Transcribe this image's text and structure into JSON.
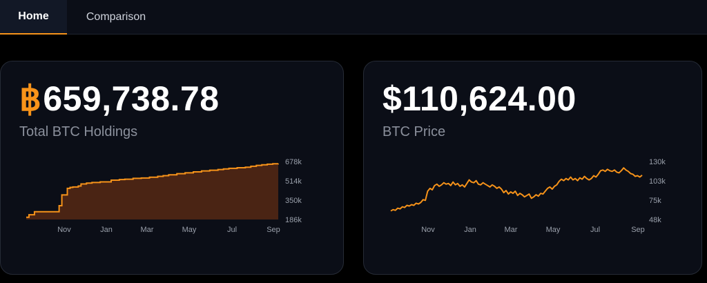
{
  "tabs": [
    {
      "label": "Home",
      "active": true
    },
    {
      "label": "Comparison",
      "active": false
    }
  ],
  "holdings_card": {
    "currency_icon": "bitcoin-icon",
    "currency_symbol": "฿",
    "value": "659,738.78",
    "label": "Total BTC Holdings"
  },
  "price_card": {
    "value": "$110,624.00",
    "label": "BTC Price"
  },
  "colors": {
    "accent": "#f7931a",
    "area_fill": "#4a2414",
    "card_bg": "#0b0e17",
    "muted_text": "#8b909c"
  },
  "chart_data": [
    {
      "type": "area",
      "step": true,
      "x_tick_labels": [
        "Nov",
        "Jan",
        "Mar",
        "May",
        "Jul",
        "Sep"
      ],
      "y_tick_labels": [
        "678k",
        "514k",
        "350k",
        "186k"
      ],
      "ylim": [
        186000,
        678000
      ],
      "x": [
        0,
        1,
        3,
        11,
        12,
        13,
        15,
        16,
        17,
        19,
        20,
        22,
        24,
        27,
        31,
        34,
        36,
        39,
        42,
        45,
        48,
        50,
        52,
        55,
        58,
        61,
        64,
        67,
        70,
        72,
        74,
        77,
        80,
        82,
        84,
        86,
        88,
        90,
        92
      ],
      "values": [
        205000,
        226000,
        252000,
        252000,
        303000,
        395000,
        450000,
        458000,
        462000,
        470000,
        488000,
        495000,
        500000,
        505000,
        520000,
        525000,
        528000,
        535000,
        538000,
        545000,
        552000,
        558000,
        565000,
        575000,
        582000,
        590000,
        598000,
        604000,
        610000,
        615000,
        620000,
        625000,
        630000,
        638000,
        645000,
        650000,
        655000,
        659000,
        659739
      ]
    },
    {
      "type": "line",
      "x_tick_labels": [
        "Nov",
        "Jan",
        "Mar",
        "May",
        "Jul",
        "Sep"
      ],
      "y_tick_labels": [
        "130k",
        "103k",
        "75k",
        "48k"
      ],
      "ylim": [
        48000,
        130000
      ],
      "values": [
        60000,
        62000,
        61000,
        64000,
        63000,
        66000,
        65000,
        68000,
        67000,
        69000,
        68000,
        71000,
        70000,
        72000,
        76000,
        75000,
        88000,
        92000,
        90000,
        96000,
        98000,
        95000,
        97000,
        100000,
        98000,
        99000,
        96000,
        101000,
        97000,
        99000,
        95000,
        97000,
        94000,
        99000,
        104000,
        101000,
        100000,
        103000,
        98000,
        97000,
        100000,
        98000,
        96000,
        94000,
        97000,
        95000,
        92000,
        94000,
        91000,
        86000,
        89000,
        84000,
        87000,
        85000,
        88000,
        82000,
        85000,
        83000,
        80000,
        82000,
        84000,
        78000,
        80000,
        83000,
        81000,
        85000,
        84000,
        88000,
        92000,
        94000,
        91000,
        95000,
        97000,
        102000,
        105000,
        103000,
        106000,
        104000,
        108000,
        104000,
        106000,
        103000,
        107000,
        105000,
        109000,
        106000,
        104000,
        106000,
        110000,
        108000,
        112000,
        117000,
        118000,
        116000,
        119000,
        117000,
        116000,
        118000,
        115000,
        114000,
        117000,
        121000,
        118000,
        116000,
        113000,
        112000,
        109000,
        110000,
        108000,
        110624
      ]
    }
  ]
}
